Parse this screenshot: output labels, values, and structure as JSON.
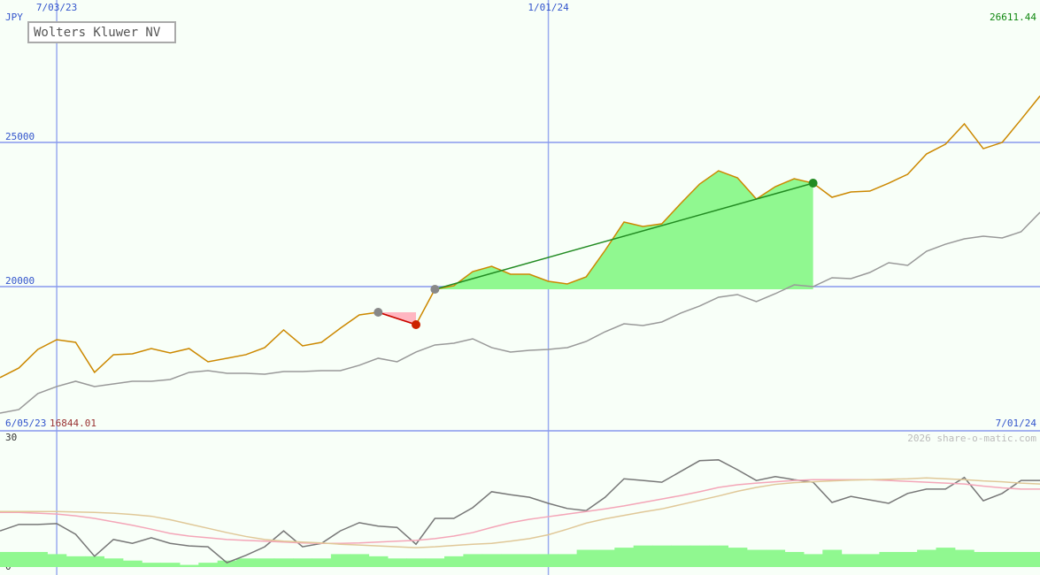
{
  "chart_data": [
    {
      "type": "line",
      "title": "Wolters Kluwer NV",
      "y_label": "JPY",
      "start_date": "6/05/23",
      "end_date": "7/01/24",
      "min_value": 16844.01,
      "max_value": 26611.44,
      "categories": [
        null,
        null,
        null,
        "7/03/23",
        null,
        null,
        null,
        null,
        null,
        null,
        null,
        null,
        null,
        null,
        null,
        null,
        null,
        null,
        null,
        null,
        null,
        null,
        null,
        null,
        null,
        null,
        null,
        null,
        null,
        "1/01/24",
        null,
        null,
        null,
        null,
        null,
        null,
        null,
        null,
        null,
        null,
        null,
        null,
        null,
        null,
        null,
        null,
        null,
        null,
        null,
        null,
        null,
        null,
        null,
        null,
        null,
        null
      ],
      "ylim": [
        15000,
        29940
      ],
      "yticks": [
        20000,
        25000
      ],
      "grid": true,
      "series": [
        {
          "color": "#cc8800",
          "values": [
            16844,
            17179,
            17823,
            18160,
            18068,
            17026,
            17640,
            17670,
            17854,
            17700,
            17854,
            17394,
            17517,
            17640,
            17885,
            18498,
            17946,
            18068,
            18559,
            19019,
            19111,
            18897,
            18682,
            19909,
            20031,
            20522,
            20706,
            20430,
            20430,
            20185,
            20093,
            20338,
            21258,
            22240,
            22086,
            22178,
            22884,
            23558,
            24018,
            23773,
            23037,
            23466,
            23742,
            23589,
            23098,
            23282,
            23313,
            23589,
            23896,
            24601,
            24939,
            25644,
            24785,
            25000,
            25797,
            26611
          ]
        },
        {
          "color": "#999999",
          "values": [
            15615,
            15738,
            16290,
            16535,
            16719,
            16535,
            16627,
            16719,
            16719,
            16780,
            17026,
            17087,
            16995,
            16995,
            16964,
            17056,
            17056,
            17087,
            17087,
            17271,
            17517,
            17394,
            17731,
            17977,
            18038,
            18191,
            17885,
            17731,
            17793,
            17823,
            17885,
            18099,
            18436,
            18712,
            18651,
            18774,
            19081,
            19326,
            19633,
            19725,
            19479,
            19755,
            20061,
            20000,
            20307,
            20276,
            20491,
            20829,
            20737,
            21227,
            21472,
            21656,
            21748,
            21687,
            21902,
            22577
          ]
        }
      ],
      "highlights": [
        {
          "start": 20,
          "end": 22,
          "line_color": "#cc0000",
          "fill": "#ffb6c1",
          "marker_color": "#cc2200"
        },
        {
          "start": 23,
          "end": 43,
          "line_color": "#228b22",
          "fill": "#90f890",
          "marker_color": "#228b22"
        }
      ]
    },
    {
      "type": "line",
      "credit": "2026 share-o-matic.com",
      "ylim": [
        0,
        30
      ],
      "yticks": [
        0,
        30
      ],
      "series": [
        {
          "color": "#777777",
          "values": [
            8.4,
            9.9,
            9.9,
            10.1,
            7.6,
            2.5,
            6.4,
            5.5,
            6.8,
            5.5,
            4.9,
            4.7,
            1.0,
            2.7,
            4.7,
            8.4,
            4.7,
            5.5,
            8.4,
            10.3,
            9.5,
            9.2,
            5.3,
            11.3,
            11.3,
            13.8,
            17.5,
            16.8,
            16.2,
            14.8,
            13.6,
            13.1,
            16.2,
            20.5,
            20.1,
            19.7,
            22.2,
            24.7,
            24.9,
            22.6,
            20.1,
            21.0,
            20.3,
            19.7,
            15.0,
            16.4,
            15.6,
            14.8,
            17.1,
            18.1,
            18.1,
            20.8,
            15.4,
            17.1,
            20.1,
            20.1
          ]
        },
        {
          "color": "#f4a6b8",
          "values": [
            12.7,
            12.7,
            12.5,
            12.3,
            11.9,
            11.3,
            10.5,
            9.7,
            8.8,
            7.8,
            7.2,
            6.8,
            6.4,
            6.2,
            6.0,
            5.8,
            5.6,
            5.5,
            5.5,
            5.6,
            5.8,
            6.0,
            6.2,
            6.6,
            7.2,
            8.0,
            9.2,
            10.3,
            11.1,
            11.7,
            12.3,
            12.9,
            13.5,
            14.2,
            15.0,
            15.8,
            16.6,
            17.5,
            18.5,
            19.1,
            19.5,
            19.8,
            20.1,
            20.3,
            20.3,
            20.3,
            20.3,
            20.1,
            19.9,
            19.7,
            19.5,
            19.3,
            18.8,
            18.4,
            18.1,
            18.1
          ]
        },
        {
          "color": "#e0c898",
          "values": [
            12.9,
            12.9,
            12.9,
            12.9,
            12.8,
            12.7,
            12.5,
            12.2,
            11.8,
            11.0,
            10.0,
            9.0,
            8.0,
            7.1,
            6.4,
            6.0,
            5.8,
            5.6,
            5.3,
            5.1,
            4.9,
            4.7,
            4.5,
            4.7,
            5.0,
            5.3,
            5.5,
            6.0,
            6.6,
            7.5,
            8.8,
            10.2,
            11.2,
            12.0,
            12.8,
            13.5,
            14.5,
            15.5,
            16.5,
            17.6,
            18.5,
            19.2,
            19.6,
            19.8,
            20.0,
            20.2,
            20.3,
            20.4,
            20.5,
            20.7,
            20.5,
            20.3,
            20.0,
            19.8,
            19.5,
            19.3
          ]
        }
      ],
      "bars": {
        "color": "#90f890",
        "values": [
          3.5,
          3.5,
          3.5,
          3,
          2.5,
          2.5,
          2,
          1.5,
          1,
          1,
          0.5,
          1,
          1.5,
          2,
          2,
          2,
          2,
          2,
          3,
          3,
          2.5,
          2,
          2,
          2,
          2.5,
          3,
          3,
          3,
          3,
          3,
          3,
          4,
          4,
          4.5,
          5,
          5,
          5,
          5,
          5,
          4.5,
          4,
          4,
          3.5,
          3,
          4,
          3,
          3,
          3.5,
          3.5,
          4,
          4.5,
          4,
          3.5,
          3.5,
          3.5,
          3.5
        ]
      }
    }
  ]
}
